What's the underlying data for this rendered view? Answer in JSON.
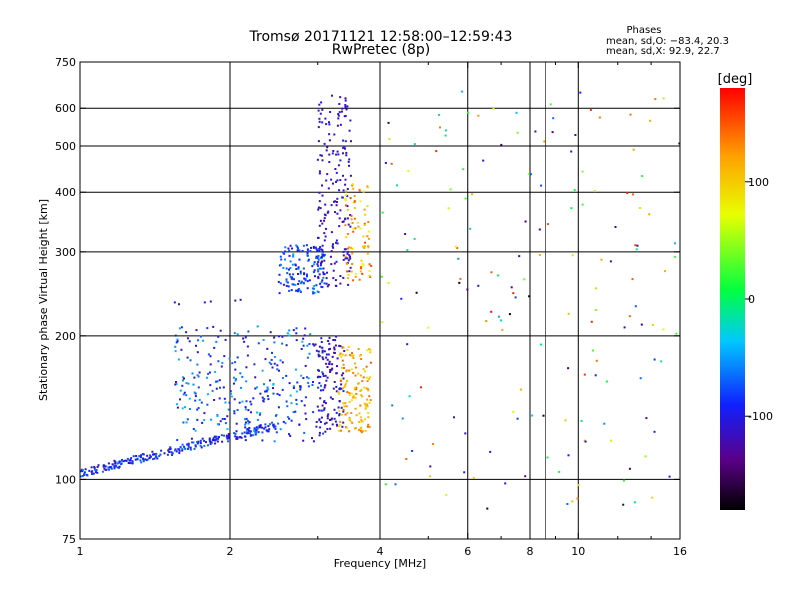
{
  "chart_data": {
    "type": "scatter",
    "title": "Tromsø 20171121 12:58:00–12:59:43",
    "subtitle": "RwPretec (8p)",
    "xlabel": "Frequency [MHz]",
    "ylabel": "Stationary phase Virtual Height [km]",
    "x_scale": "log",
    "y_scale": "log",
    "xlim": [
      1,
      16
    ],
    "ylim": [
      75,
      750
    ],
    "xticks": [
      1,
      2,
      4,
      6,
      8,
      10,
      16
    ],
    "yticks": [
      75,
      100,
      200,
      300,
      400,
      500,
      600,
      750
    ],
    "grid_x": [
      2,
      4,
      6,
      8,
      10
    ],
    "grid_y": [
      100,
      200,
      300,
      400,
      500,
      600
    ],
    "minor_grid_x": [
      8.6
    ],
    "color_by": "phase_deg",
    "colorbar": {
      "label": "[deg]",
      "range": [
        -180,
        180
      ],
      "ticks": [
        100,
        0,
        -100
      ]
    },
    "phase_stats": {
      "title": "Phases",
      "line_o": "mean, sd,O: −83.4, 20.3",
      "line_x": "mean, sd,X:  92.9, 22.7"
    },
    "series": [
      {
        "type": "band",
        "x_range": [
          1.0,
          2.5
        ],
        "h_start": 103,
        "h_end": 130,
        "jitter": 0.02,
        "phase_range": [
          -120,
          -60
        ],
        "count": 260
      },
      {
        "type": "cloud",
        "x_range": [
          1.55,
          3.1
        ],
        "h_range": [
          120,
          210
        ],
        "phase_range": [
          -125,
          -35
        ],
        "count": 320
      },
      {
        "type": "cloud",
        "x_range": [
          3.0,
          3.4
        ],
        "h_range": [
          125,
          200
        ],
        "phase_range": [
          -125,
          -95
        ],
        "count": 120
      },
      {
        "type": "cloud",
        "x_range": [
          3.3,
          3.85
        ],
        "h_range": [
          125,
          190
        ],
        "phase_range": [
          80,
          150
        ],
        "count": 140
      },
      {
        "type": "cloud",
        "x_range": [
          2.5,
          3.1
        ],
        "h_range": [
          245,
          310
        ],
        "phase_range": [
          -110,
          -45
        ],
        "count": 150
      },
      {
        "type": "cloud",
        "x_range": [
          3.0,
          3.5
        ],
        "h_range": [
          250,
          640
        ],
        "phase_range": [
          -125,
          -95
        ],
        "count": 190
      },
      {
        "type": "cloud",
        "x_range": [
          3.4,
          3.85
        ],
        "h_range": [
          260,
          420
        ],
        "phase_range": [
          70,
          160
        ],
        "count": 80
      },
      {
        "type": "points",
        "x": [
          1.55,
          1.58,
          1.78,
          1.83,
          2.05,
          2.1
        ],
        "h": [
          235,
          233,
          235,
          236,
          237,
          238
        ],
        "phase": [
          -110,
          -105,
          -100,
          -105,
          -110,
          -105
        ]
      },
      {
        "type": "scatter",
        "x_range": [
          4.0,
          16.0
        ],
        "h_range": [
          85,
          650
        ],
        "phase_range": [
          -180,
          180
        ],
        "count": 170
      }
    ]
  }
}
